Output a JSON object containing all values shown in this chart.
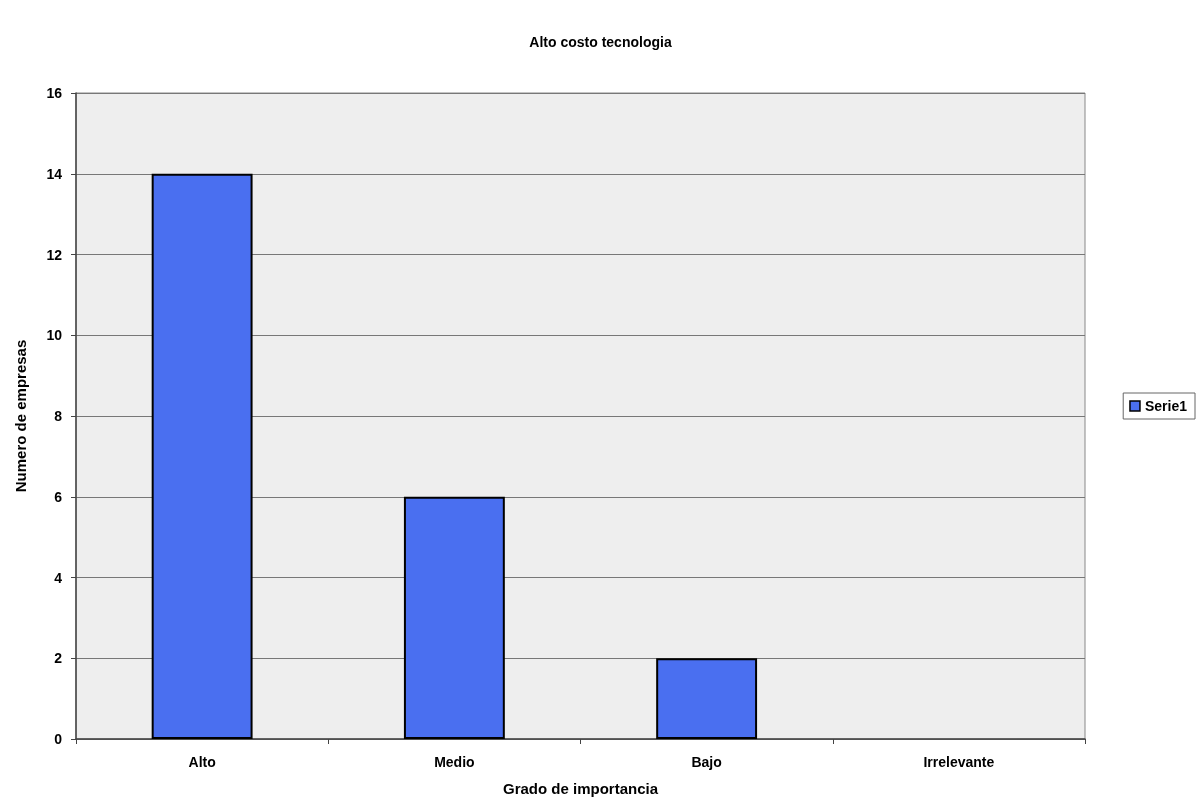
{
  "chart_data": {
    "type": "bar",
    "title": "Alto costo tecnologia",
    "xlabel": "Grado de importancia",
    "ylabel": "Numero de empresas",
    "categories": [
      "Alto",
      "Medio",
      "Bajo",
      "Irrelevante"
    ],
    "series": [
      {
        "name": "Serie1",
        "color": "#4a6ff0",
        "values": [
          14,
          6,
          2,
          0
        ]
      }
    ],
    "ylim": [
      0,
      16
    ],
    "yticks": [
      0,
      2,
      4,
      6,
      8,
      10,
      12,
      14,
      16
    ],
    "grid": "y",
    "legend": "right"
  }
}
